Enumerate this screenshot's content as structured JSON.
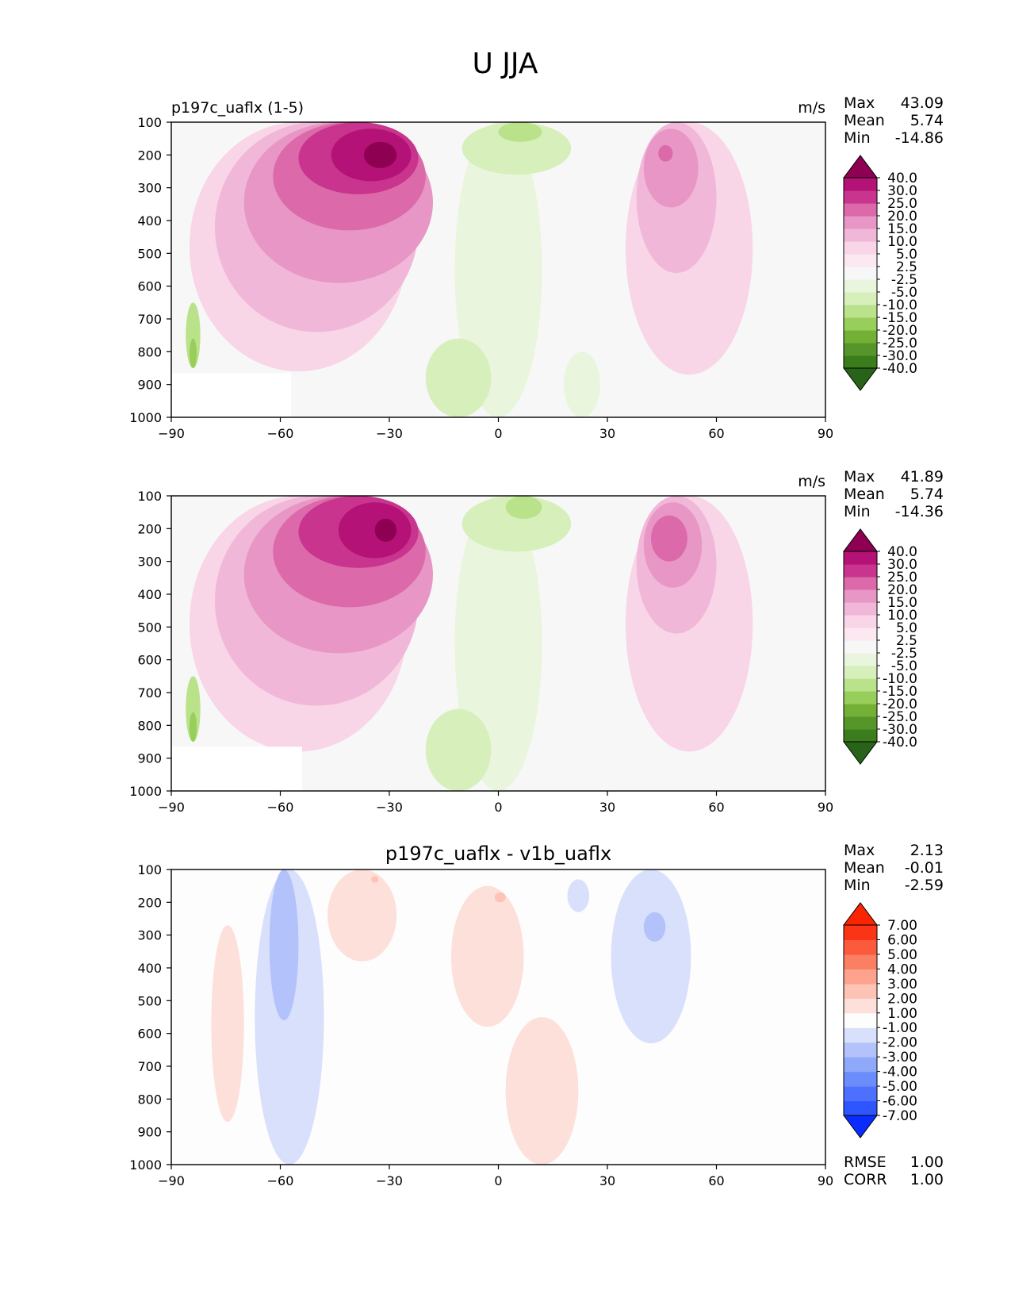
{
  "figure": {
    "title": "U JJA"
  },
  "colors": {
    "test_ref_levels": [
      "-40.0",
      "-30.0",
      "-25.0",
      "-20.0",
      "-15.0",
      "-10.0",
      "-5.0",
      "-2.5",
      "2.5",
      "5.0",
      "10.0",
      "15.0",
      "20.0",
      "25.0",
      "30.0",
      "40.0"
    ],
    "test_ref_cmap": [
      "#276419",
      "#3b7d1d",
      "#55952a",
      "#74b036",
      "#98ce5b",
      "#bae28a",
      "#d6efbb",
      "#e9f5dc",
      "#f7f7f7",
      "#fbe8f1",
      "#f8d5e7",
      "#f1b7d8",
      "#e796c5",
      "#dc6aaa",
      "#c9358e",
      "#b41276",
      "#8e0152"
    ],
    "diff_levels": [
      "-7.00",
      "-6.00",
      "-5.00",
      "-4.00",
      "-3.00",
      "-2.00",
      "-1.00",
      "1.00",
      "2.00",
      "3.00",
      "4.00",
      "5.00",
      "6.00",
      "7.00"
    ],
    "diff_cmap": [
      "#0a2cff",
      "#2f55ff",
      "#4d70ff",
      "#6b8cfb",
      "#8ea8fa",
      "#b3c2fb",
      "#d8e0fc",
      "#fdfdfd",
      "#fde0da",
      "#fdc3b4",
      "#fca28d",
      "#fb7f62",
      "#fb5a3c",
      "#fa3415",
      "#fa2400"
    ]
  },
  "panels": [
    {
      "title_left": "p197c_uaflx (1-5)",
      "title_center": "",
      "units": "m/s",
      "stats": [
        {
          "label": "Max",
          "value": "43.09"
        },
        {
          "label": "Mean",
          "value": "5.74"
        },
        {
          "label": "Min",
          "value": "-14.86"
        }
      ],
      "colorbar": "test_ref"
    },
    {
      "title_left": "",
      "title_center": "",
      "units": "m/s",
      "stats": [
        {
          "label": "Max",
          "value": "41.89"
        },
        {
          "label": "Mean",
          "value": "5.74"
        },
        {
          "label": "Min",
          "value": "-14.36"
        }
      ],
      "colorbar": "test_ref"
    },
    {
      "title_left": "",
      "title_center": "p197c_uaflx - v1b_uaflx",
      "units": "",
      "stats": [
        {
          "label": "Max",
          "value": "2.13"
        },
        {
          "label": "Mean",
          "value": "-0.01"
        },
        {
          "label": "Min",
          "value": "-2.59"
        }
      ],
      "colorbar": "diff",
      "footer_stats": [
        {
          "label": "RMSE",
          "value": "1.00"
        },
        {
          "label": "CORR",
          "value": "1.00"
        }
      ]
    }
  ],
  "chart_data": {
    "type": "contour",
    "x": {
      "ticks": [
        "−90",
        "−60",
        "−30",
        "0",
        "30",
        "60",
        "90"
      ],
      "range": [
        -90,
        90
      ],
      "label": ""
    },
    "y": {
      "ticks": [
        "100",
        "200",
        "300",
        "400",
        "500",
        "600",
        "700",
        "800",
        "900",
        "1000"
      ],
      "range": [
        100,
        1000
      ],
      "inverted": true,
      "label": ""
    },
    "fields": [
      {
        "panel": 0,
        "blobs": [
          {
            "lat": [
              -88,
              -8
            ],
            "p": [
              100,
              1000
            ],
            "level": 8
          },
          {
            "lat": [
              -85,
              -25
            ],
            "p": [
              100,
              860
            ],
            "level": 10
          },
          {
            "lat": [
              -78,
              -22
            ],
            "p": [
              100,
              740
            ],
            "level": 11
          },
          {
            "lat": [
              -70,
              -18
            ],
            "p": [
              100,
              590
            ],
            "level": 12
          },
          {
            "lat": [
              -62,
              -20
            ],
            "p": [
              100,
              430
            ],
            "level": 13
          },
          {
            "lat": [
              -55,
              -22
            ],
            "p": [
              100,
              320
            ],
            "level": 14
          },
          {
            "lat": [
              -46,
              -24
            ],
            "p": [
              120,
              280
            ],
            "level": 15
          },
          {
            "lat": [
              -37,
              -28
            ],
            "p": [
              160,
              240
            ],
            "level": 16
          },
          {
            "lat": [
              -12,
              12
            ],
            "p": [
              100,
              1000
            ],
            "level": 7
          },
          {
            "lat": [
              -10,
              20
            ],
            "p": [
              100,
              260
            ],
            "level": 6
          },
          {
            "lat": [
              0,
              12
            ],
            "p": [
              100,
              160
            ],
            "level": 5
          },
          {
            "lat": [
              -20,
              -2
            ],
            "p": [
              760,
              1000
            ],
            "level": 6
          },
          {
            "lat": [
              18,
              28
            ],
            "p": [
              800,
              1000
            ],
            "level": 7
          },
          {
            "lat": [
              30,
              82
            ],
            "p": [
              100,
              1000
            ],
            "level": 8
          },
          {
            "lat": [
              35,
              70
            ],
            "p": [
              100,
              870
            ],
            "level": 10
          },
          {
            "lat": [
              38,
              60
            ],
            "p": [
              100,
              560
            ],
            "level": 11
          },
          {
            "lat": [
              40,
              55
            ],
            "p": [
              120,
              360
            ],
            "level": 12
          },
          {
            "lat": [
              44,
              48
            ],
            "p": [
              170,
              220
            ],
            "level": 13
          },
          {
            "lat": [
              -86,
              -82
            ],
            "p": [
              650,
              850
            ],
            "level": 5
          },
          {
            "lat": [
              -85,
              -83
            ],
            "p": [
              760,
              850
            ],
            "level": 4
          }
        ],
        "missing": {
          "lat": [
            -90,
            -57
          ],
          "p": [
            865,
            1000
          ]
        }
      },
      {
        "panel": 1,
        "blobs": [
          {
            "lat": [
              -88,
              -8
            ],
            "p": [
              100,
              1000
            ],
            "level": 8
          },
          {
            "lat": [
              -85,
              -25
            ],
            "p": [
              100,
              880
            ],
            "level": 10
          },
          {
            "lat": [
              -78,
              -22
            ],
            "p": [
              100,
              740
            ],
            "level": 11
          },
          {
            "lat": [
              -70,
              -18
            ],
            "p": [
              100,
              580
            ],
            "level": 12
          },
          {
            "lat": [
              -62,
              -20
            ],
            "p": [
              100,
              440
            ],
            "level": 13
          },
          {
            "lat": [
              -55,
              -22
            ],
            "p": [
              100,
              320
            ],
            "level": 14
          },
          {
            "lat": [
              -44,
              -24
            ],
            "p": [
              120,
              290
            ],
            "level": 15
          },
          {
            "lat": [
              -34,
              -28
            ],
            "p": [
              170,
              240
            ],
            "level": 16
          },
          {
            "lat": [
              -12,
              12
            ],
            "p": [
              100,
              1000
            ],
            "level": 7
          },
          {
            "lat": [
              -10,
              20
            ],
            "p": [
              100,
              270
            ],
            "level": 6
          },
          {
            "lat": [
              2,
              12
            ],
            "p": [
              100,
              170
            ],
            "level": 5
          },
          {
            "lat": [
              -20,
              -2
            ],
            "p": [
              750,
              1000
            ],
            "level": 6
          },
          {
            "lat": [
              30,
              82
            ],
            "p": [
              100,
              1000
            ],
            "level": 8
          },
          {
            "lat": [
              35,
              70
            ],
            "p": [
              100,
              880
            ],
            "level": 10
          },
          {
            "lat": [
              38,
              60
            ],
            "p": [
              100,
              520
            ],
            "level": 11
          },
          {
            "lat": [
              40,
              56
            ],
            "p": [
              120,
              380
            ],
            "level": 12
          },
          {
            "lat": [
              42,
              52
            ],
            "p": [
              160,
              300
            ],
            "level": 13
          },
          {
            "lat": [
              -86,
              -82
            ],
            "p": [
              650,
              850
            ],
            "level": 5
          },
          {
            "lat": [
              -85,
              -83
            ],
            "p": [
              760,
              850
            ],
            "level": 4
          }
        ],
        "missing": {
          "lat": [
            -90,
            -54
          ],
          "p": [
            865,
            1000
          ]
        }
      },
      {
        "panel": 2,
        "blobs": [
          {
            "lat": [
              -79,
              -70
            ],
            "p": [
              270,
              870
            ],
            "level": 8
          },
          {
            "lat": [
              -67,
              -48
            ],
            "p": [
              100,
              1000
            ],
            "level": 6
          },
          {
            "lat": [
              -63,
              -55
            ],
            "p": [
              100,
              560
            ],
            "level": 5
          },
          {
            "lat": [
              -47,
              -28
            ],
            "p": [
              100,
              380
            ],
            "level": 8
          },
          {
            "lat": [
              -13,
              7
            ],
            "p": [
              150,
              580
            ],
            "level": 8
          },
          {
            "lat": [
              2,
              22
            ],
            "p": [
              550,
              1000
            ],
            "level": 8
          },
          {
            "lat": [
              -1,
              2
            ],
            "p": [
              170,
              200
            ],
            "level": 9
          },
          {
            "lat": [
              -35,
              -33
            ],
            "p": [
              120,
              140
            ],
            "level": 9
          },
          {
            "lat": [
              19,
              25
            ],
            "p": [
              130,
              230
            ],
            "level": 6
          },
          {
            "lat": [
              31,
              53
            ],
            "p": [
              100,
              630
            ],
            "level": 6
          },
          {
            "lat": [
              40,
              46
            ],
            "p": [
              230,
              320
            ],
            "level": 5
          }
        ],
        "missing": null
      }
    ]
  }
}
